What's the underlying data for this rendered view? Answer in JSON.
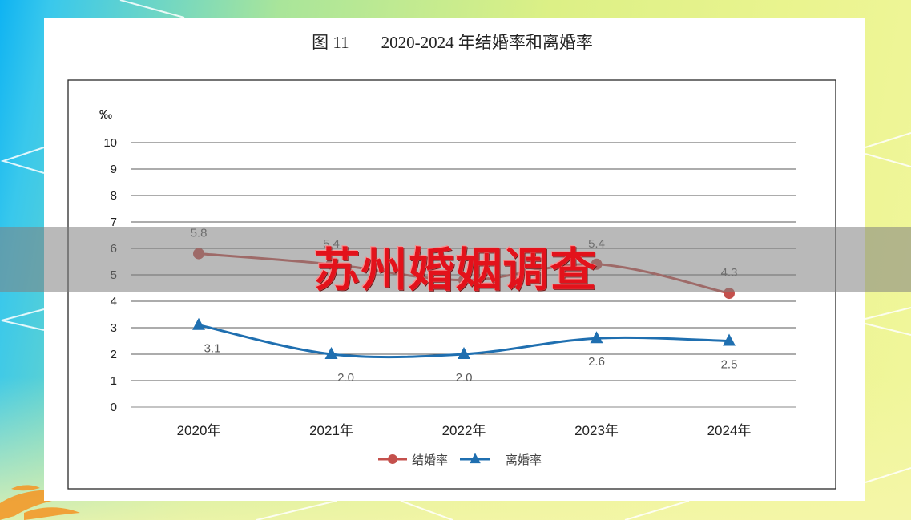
{
  "figure": {
    "number": "图 11"
  },
  "banner": {
    "text": "苏州婚姻调查"
  },
  "chart_data": {
    "type": "line",
    "title": "2020-2024 年结婚率和离婚率",
    "ylabel": "‰",
    "xlabel": "",
    "categories": [
      "2020年",
      "2021年",
      "2022年",
      "2023年",
      "2024年"
    ],
    "ylim": [
      0,
      10
    ],
    "yticks": [
      0,
      1,
      2,
      3,
      4,
      5,
      6,
      7,
      8,
      9,
      10
    ],
    "grid": true,
    "legend": "bottom",
    "series": [
      {
        "name": "结婚率",
        "values": [
          5.8,
          5.4,
          4.8,
          5.4,
          4.3
        ],
        "labels": [
          "5.8",
          "5.4",
          null,
          "5.4",
          "4.3"
        ],
        "color": "#c4504c",
        "marker": "circle"
      },
      {
        "name": "离婚率",
        "values": [
          3.1,
          2.0,
          2.0,
          2.6,
          2.5
        ],
        "labels": [
          "3.1",
          "2.0",
          "2.0",
          "2.6",
          "2.5"
        ],
        "color": "#1f6fb0",
        "marker": "triangle"
      }
    ]
  }
}
